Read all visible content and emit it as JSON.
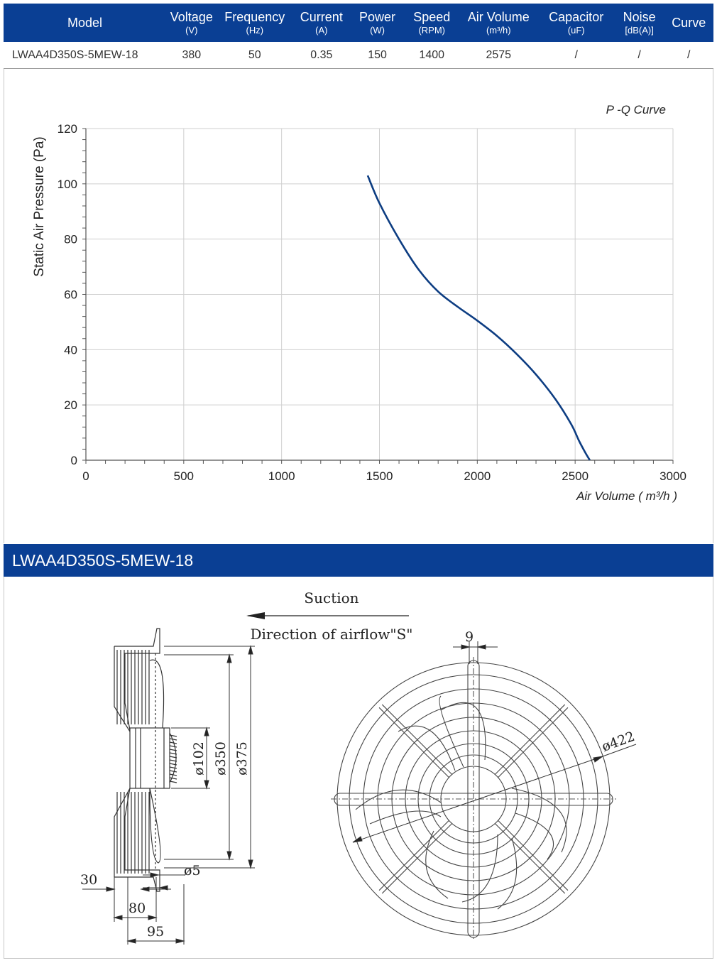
{
  "spec_table": {
    "headers": [
      {
        "label": "Model",
        "unit": ""
      },
      {
        "label": "Voltage",
        "unit": "(V)"
      },
      {
        "label": "Frequency",
        "unit": "(Hz)"
      },
      {
        "label": "Current",
        "unit": "(A)"
      },
      {
        "label": "Power",
        "unit": "(W)"
      },
      {
        "label": "Speed",
        "unit": "(RPM)"
      },
      {
        "label": "Air Volume",
        "unit": "(m³/h)"
      },
      {
        "label": "Capacitor",
        "unit": "(uF)"
      },
      {
        "label": "Noise",
        "unit": "[dB(A)]"
      },
      {
        "label": "Curve",
        "unit": ""
      }
    ],
    "row": [
      "LWAA4D350S-5MEW-18",
      "380",
      "50",
      "0.35",
      "150",
      "1400",
      "2575",
      "/",
      "/",
      "/"
    ]
  },
  "chart_data": {
    "type": "line",
    "title": "P -Q Curve",
    "xlabel": "Air Volume ( m³/h )",
    "ylabel": "Static Air Pressure  (Pa)",
    "xlim": [
      0,
      3000
    ],
    "ylim": [
      0,
      120
    ],
    "xticks": [
      0,
      500,
      1000,
      1500,
      2000,
      2500,
      3000
    ],
    "yticks": [
      0,
      20,
      40,
      60,
      80,
      100,
      120
    ],
    "grid": true,
    "colors": {
      "curve": "#0d3d82",
      "grid": "#cfcfcf",
      "axis": "#555555"
    },
    "series": [
      {
        "x": [
          1440,
          1500,
          1600,
          1700,
          1800,
          1900,
          2000,
          2100,
          2200,
          2300,
          2400,
          2480,
          2520,
          2550,
          2575
        ],
        "y": [
          103,
          93,
          80,
          69,
          61,
          55.5,
          50.5,
          45,
          38.5,
          31,
          22,
          13,
          7,
          3,
          0
        ]
      }
    ]
  },
  "banner": {
    "title": "LWAA4D350S-5MEW-18"
  },
  "drawing": {
    "suction": "Suction",
    "airflow": "Direction of airflow\"S\"",
    "dims": {
      "d102": "ø102",
      "d350": "ø350",
      "d375": "ø375",
      "d5": "ø5",
      "d30": "30",
      "d80": "80",
      "d95": "95",
      "d9": "9",
      "d422": "ø422"
    }
  }
}
